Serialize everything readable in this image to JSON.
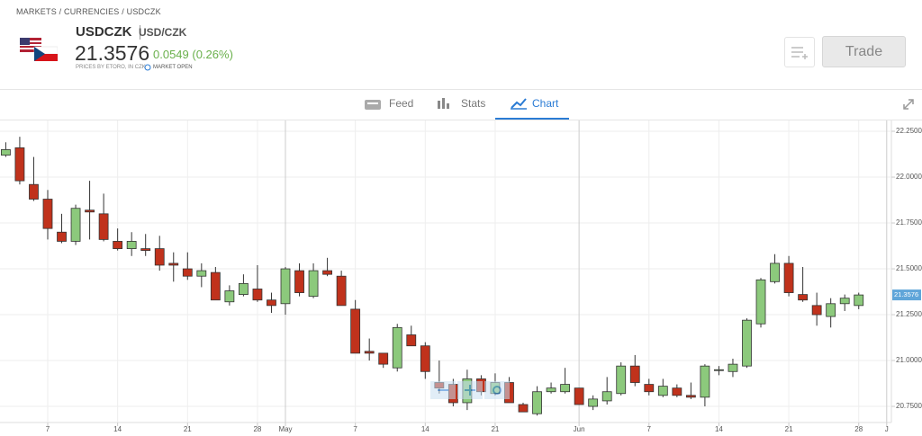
{
  "header": {
    "breadcrumb": "MARKETS / CURRENCIES / USDCZK",
    "symbol": "USDCZK",
    "name": "USD/CZK",
    "price": "21.3576",
    "change": "0.0549 (0.26%)",
    "source": "PRICES BY ETORO, IN CZK",
    "status": "MARKET OPEN",
    "trade_button": "Trade"
  },
  "tabs": [
    "Feed",
    "Stats",
    "Chart"
  ],
  "chart_data": {
    "type": "candlestick",
    "categories": [
      null,
      null,
      null,
      "7",
      null,
      null,
      null,
      null,
      "14",
      null,
      null,
      null,
      null,
      "21",
      null,
      null,
      null,
      null,
      "28",
      null,
      "May",
      null,
      null,
      null,
      null,
      "7",
      null,
      null,
      null,
      null,
      "14",
      null,
      null,
      null,
      null,
      "21",
      null,
      null,
      null,
      null,
      null,
      "Jun",
      null,
      null,
      null,
      null,
      "7",
      null,
      null,
      null,
      null,
      "14",
      null,
      null,
      null,
      null,
      "21",
      null,
      null,
      null,
      null,
      "28",
      null,
      "J"
    ],
    "open": [
      22.12,
      22.16,
      21.96,
      21.88,
      21.7,
      21.65,
      21.82,
      21.8,
      21.65,
      21.61,
      21.61,
      21.61,
      21.53,
      21.5,
      21.46,
      21.48,
      21.32,
      21.36,
      21.39,
      21.33,
      21.31,
      21.49,
      21.35,
      21.49,
      21.46,
      21.28,
      21.05,
      21.04,
      20.96,
      21.14,
      21.08,
      20.88,
      20.87,
      20.77,
      20.9,
      20.82,
      20.88,
      20.76,
      20.71,
      20.83,
      20.83,
      20.85,
      20.75,
      20.78,
      20.82,
      20.97,
      20.87,
      20.81,
      20.85,
      20.81,
      20.8,
      20.95,
      20.94,
      20.97,
      21.2,
      21.43,
      21.53,
      21.36,
      21.3,
      21.24,
      21.31,
      21.3,
      null,
      null
    ],
    "high": [
      22.19,
      22.22,
      22.11,
      21.93,
      21.8,
      21.85,
      21.98,
      21.91,
      21.72,
      21.7,
      21.69,
      21.68,
      21.59,
      21.59,
      21.53,
      21.51,
      21.41,
      21.47,
      21.52,
      21.37,
      21.51,
      21.53,
      21.53,
      21.56,
      21.49,
      21.33,
      21.12,
      21.04,
      21.2,
      21.19,
      21.1,
      21.0,
      20.9,
      20.95,
      20.92,
      20.93,
      20.91,
      20.77,
      20.86,
      20.88,
      20.96,
      20.85,
      20.81,
      20.91,
      20.99,
      21.03,
      20.9,
      20.9,
      20.87,
      20.88,
      20.98,
      20.97,
      21.01,
      21.23,
      21.45,
      21.58,
      21.57,
      21.51,
      21.37,
      21.34,
      21.36,
      21.37,
      null,
      null
    ],
    "low": [
      22.11,
      21.96,
      21.87,
      21.66,
      21.64,
      21.63,
      21.66,
      21.65,
      21.6,
      21.57,
      21.57,
      21.49,
      21.43,
      21.44,
      21.4,
      21.33,
      21.3,
      21.35,
      21.32,
      21.26,
      21.25,
      21.35,
      21.34,
      21.46,
      21.3,
      21.04,
      21.0,
      20.96,
      20.94,
      21.08,
      20.9,
      20.82,
      20.75,
      20.73,
      20.81,
      20.81,
      20.77,
      20.72,
      20.7,
      20.82,
      20.82,
      20.76,
      20.73,
      20.76,
      20.81,
      20.86,
      20.81,
      20.8,
      20.8,
      20.79,
      20.75,
      20.92,
      20.91,
      20.96,
      21.18,
      21.42,
      21.35,
      21.32,
      21.19,
      21.18,
      21.27,
      21.28,
      null,
      null
    ],
    "close": [
      22.15,
      21.98,
      21.88,
      21.72,
      21.65,
      21.83,
      21.81,
      21.66,
      21.61,
      21.65,
      21.6,
      21.52,
      21.52,
      21.46,
      21.49,
      21.33,
      21.38,
      21.42,
      21.33,
      21.3,
      21.5,
      21.37,
      21.49,
      21.47,
      21.3,
      21.04,
      21.04,
      20.98,
      21.18,
      21.08,
      20.94,
      20.85,
      20.77,
      20.9,
      20.83,
      20.88,
      20.77,
      20.72,
      20.83,
      20.85,
      20.87,
      20.76,
      20.79,
      20.83,
      20.97,
      20.88,
      20.83,
      20.86,
      20.81,
      20.8,
      20.97,
      20.95,
      20.98,
      21.22,
      21.44,
      21.53,
      21.37,
      21.33,
      21.25,
      21.31,
      21.34,
      21.3576,
      null,
      null
    ],
    "up_color": "#8cc97c",
    "down_color": "#c0321c",
    "ylim": [
      20.662,
      22.309
    ],
    "yticks": [
      {
        "value": 20.75,
        "label": "20.7500"
      },
      {
        "value": 21,
        "label": "21.0000"
      },
      {
        "value": 21.25,
        "label": "21.2500"
      },
      {
        "value": 21.5,
        "label": "21.5000"
      },
      {
        "value": 21.75,
        "label": "21.7500"
      },
      {
        "value": 22,
        "label": "22.0000"
      },
      {
        "value": 22.25,
        "label": "22.2500"
      }
    ],
    "last_value": 21.3576,
    "grid": true
  }
}
